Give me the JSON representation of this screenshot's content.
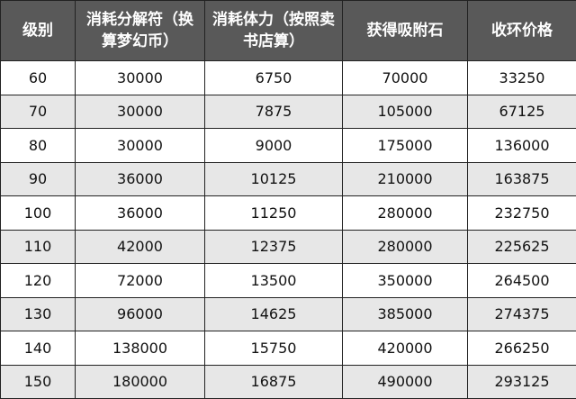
{
  "headers": [
    "级别",
    "消耗分解符（换算梦幻币）",
    "消耗体力（按照卖书店算）",
    "获得吸附石",
    "收环价格"
  ],
  "rows": [
    [
      "60",
      "30000",
      "6750",
      "70000",
      "33250"
    ],
    [
      "70",
      "30000",
      "7875",
      "105000",
      "67125"
    ],
    [
      "80",
      "30000",
      "9000",
      "175000",
      "136000"
    ],
    [
      "90",
      "36000",
      "10125",
      "210000",
      "163875"
    ],
    [
      "100",
      "36000",
      "11250",
      "280000",
      "232750"
    ],
    [
      "110",
      "42000",
      "12375",
      "280000",
      "225625"
    ],
    [
      "120",
      "72000",
      "13500",
      "350000",
      "264500"
    ],
    [
      "130",
      "96000",
      "14625",
      "385000",
      "274375"
    ],
    [
      "140",
      "138000",
      "15750",
      "420000",
      "266250"
    ],
    [
      "150",
      "180000",
      "16875",
      "490000",
      "293125"
    ]
  ]
}
